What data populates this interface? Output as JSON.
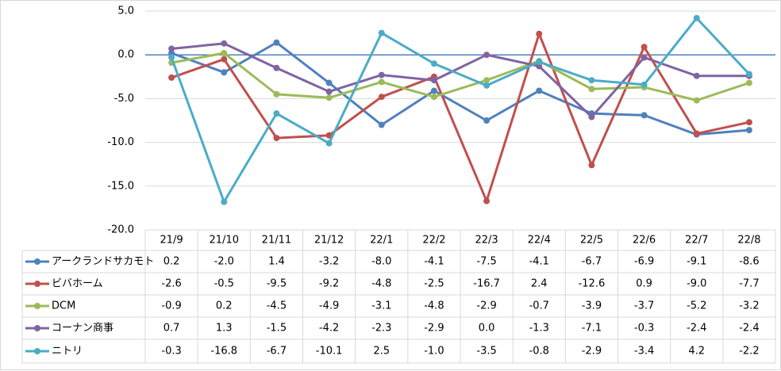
{
  "chart_data": {
    "type": "line",
    "categories": [
      "21/9",
      "21/10",
      "21/11",
      "21/12",
      "22/1",
      "22/2",
      "22/3",
      "22/4",
      "22/5",
      "22/6",
      "22/7",
      "22/8"
    ],
    "ylim": [
      -20,
      5
    ],
    "yticks": [
      {
        "value": -20,
        "label": "-20.0"
      },
      {
        "value": -15,
        "label": "-15.0"
      },
      {
        "value": -10,
        "label": "-10.0"
      },
      {
        "value": -5,
        "label": "-5.0"
      },
      {
        "value": 0,
        "label": "0.0"
      },
      {
        "value": 5,
        "label": "5.0"
      }
    ],
    "grid": true,
    "series": [
      {
        "name": "アークランドサカモト",
        "color": "#4f81bd",
        "values": [
          0.2,
          -2.0,
          1.4,
          -3.2,
          -8.0,
          -4.1,
          -7.5,
          -4.1,
          -6.7,
          -6.9,
          -9.1,
          -8.6
        ],
        "value_labels": [
          "0.2",
          "-2.0",
          "1.4",
          "-3.2",
          "-8.0",
          "-4.1",
          "-7.5",
          "-4.1",
          "-6.7",
          "-6.9",
          "-9.1",
          "-8.6"
        ]
      },
      {
        "name": "ビバホーム",
        "color": "#c0504d",
        "values": [
          -2.6,
          -0.5,
          -9.5,
          -9.2,
          -4.8,
          -2.5,
          -16.7,
          2.4,
          -12.6,
          0.9,
          -9.0,
          -7.7
        ],
        "value_labels": [
          "-2.6",
          "-0.5",
          "-9.5",
          "-9.2",
          "-4.8",
          "-2.5",
          "-16.7",
          "2.4",
          "-12.6",
          "0.9",
          "-9.0",
          "-7.7"
        ]
      },
      {
        "name": "DCM",
        "color": "#9bbb59",
        "values": [
          -0.9,
          0.2,
          -4.5,
          -4.9,
          -3.1,
          -4.8,
          -2.9,
          -0.7,
          -3.9,
          -3.7,
          -5.2,
          -3.2
        ],
        "value_labels": [
          "-0.9",
          "0.2",
          "-4.5",
          "-4.9",
          "-3.1",
          "-4.8",
          "-2.9",
          "-0.7",
          "-3.9",
          "-3.7",
          "-5.2",
          "-3.2"
        ]
      },
      {
        "name": "コーナン商事",
        "color": "#8064a2",
        "values": [
          0.7,
          1.3,
          -1.5,
          -4.2,
          -2.3,
          -2.9,
          0.0,
          -1.3,
          -7.1,
          -0.3,
          -2.4,
          -2.4
        ],
        "value_labels": [
          "0.7",
          "1.3",
          "-1.5",
          "-4.2",
          "-2.3",
          "-2.9",
          "0.0",
          "-1.3",
          "-7.1",
          "-0.3",
          "-2.4",
          "-2.4"
        ]
      },
      {
        "name": "ニトリ",
        "color": "#4bacc6",
        "values": [
          -0.3,
          -16.8,
          -6.7,
          -10.1,
          2.5,
          -1.0,
          -3.5,
          -0.8,
          -2.9,
          -3.4,
          4.2,
          -2.2
        ],
        "value_labels": [
          "-0.3",
          "-16.8",
          "-6.7",
          "-10.1",
          "2.5",
          "-1.0",
          "-3.5",
          "-0.8",
          "-2.9",
          "-3.4",
          "4.2",
          "-2.2"
        ]
      }
    ]
  }
}
